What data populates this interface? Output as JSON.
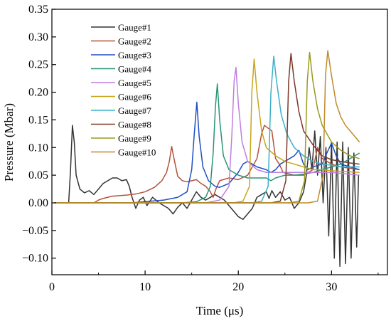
{
  "chart_data": {
    "type": "line",
    "xlabel": "Time (μs)",
    "ylabel": "Pressure (Mbar)",
    "xlim": [
      0,
      36
    ],
    "ylim": [
      -0.13,
      0.35
    ],
    "xticks": [
      0,
      10,
      20,
      30
    ],
    "yticks": [
      -0.1,
      -0.05,
      0.0,
      0.05,
      0.1,
      0.15,
      0.2,
      0.25,
      0.3,
      0.35
    ],
    "ytick_labels": [
      "−0.10",
      "−0.05",
      "0.00",
      "0.05",
      "0.10",
      "0.15",
      "0.20",
      "0.25",
      "0.30",
      "0.35"
    ],
    "legend_position": "top-left",
    "series": [
      {
        "name": "Gauge#1",
        "color": "#333333",
        "points": [
          [
            0.3,
            0
          ],
          [
            1.8,
            0
          ],
          [
            2.0,
            0.06
          ],
          [
            2.2,
            0.14
          ],
          [
            2.4,
            0.11
          ],
          [
            2.6,
            0.05
          ],
          [
            3.0,
            0.025
          ],
          [
            3.5,
            0.018
          ],
          [
            4.0,
            0.022
          ],
          [
            4.5,
            0.015
          ],
          [
            5.0,
            0.025
          ],
          [
            5.5,
            0.035
          ],
          [
            6.0,
            0.04
          ],
          [
            6.5,
            0.045
          ],
          [
            7.0,
            0.045
          ],
          [
            7.5,
            0.04
          ],
          [
            8.0,
            0.042
          ],
          [
            8.3,
            0.03
          ],
          [
            8.6,
            0.01
          ],
          [
            9.0,
            -0.01
          ],
          [
            9.4,
            0.005
          ],
          [
            9.8,
            0.01
          ],
          [
            10.2,
            -0.005
          ],
          [
            10.8,
            0.01
          ],
          [
            11.5,
            0
          ],
          [
            12.0,
            -0.005
          ],
          [
            12.5,
            -0.01
          ],
          [
            13.0,
            -0.02
          ],
          [
            13.5,
            -0.008
          ],
          [
            14.0,
            0
          ],
          [
            14.5,
            -0.01
          ],
          [
            15.0,
            0.005
          ],
          [
            15.5,
            0.02
          ],
          [
            16.0,
            0.01
          ],
          [
            16.5,
            0.005
          ],
          [
            17.0,
            0.01
          ],
          [
            17.5,
            0.015
          ],
          [
            18.0,
            0.01
          ],
          [
            18.5,
            0.005
          ],
          [
            19.0,
            -0.005
          ],
          [
            19.5,
            -0.015
          ],
          [
            20.0,
            -0.025
          ],
          [
            20.5,
            -0.03
          ],
          [
            21.0,
            -0.02
          ],
          [
            21.5,
            -0.01
          ],
          [
            22.0,
            0.01
          ],
          [
            22.5,
            0.015
          ],
          [
            23.0,
            0.02
          ],
          [
            23.3,
            0.008
          ],
          [
            23.6,
            0.022
          ],
          [
            24.0,
            0.01
          ],
          [
            24.5,
            0.02
          ],
          [
            25.0,
            0.005
          ],
          [
            25.5,
            0.01
          ],
          [
            26.0,
            -0.01
          ],
          [
            26.5,
            0
          ],
          [
            27.0,
            0.02
          ],
          [
            27.3,
            0.05
          ],
          [
            27.6,
            0.1
          ],
          [
            27.9,
            0.06
          ],
          [
            28.2,
            0.13
          ],
          [
            28.5,
            0.05
          ],
          [
            28.8,
            0.12
          ],
          [
            29.1,
            0
          ],
          [
            29.4,
            0.1
          ],
          [
            29.7,
            -0.06
          ],
          [
            30.0,
            0.11
          ],
          [
            30.3,
            -0.1
          ],
          [
            30.6,
            0.11
          ],
          [
            30.9,
            -0.115
          ],
          [
            31.2,
            0.11
          ],
          [
            31.5,
            -0.11
          ],
          [
            31.8,
            0.1
          ],
          [
            32.1,
            -0.1
          ],
          [
            32.4,
            0.09
          ],
          [
            32.7,
            -0.08
          ],
          [
            32.9,
            0.05
          ]
        ]
      },
      {
        "name": "Gauge#2",
        "color": "#b5523b",
        "points": [
          [
            0.3,
            0
          ],
          [
            4.5,
            0
          ],
          [
            5.0,
            0.005
          ],
          [
            5.5,
            0.008
          ],
          [
            6.5,
            0.012
          ],
          [
            8.0,
            0.014
          ],
          [
            9.0,
            0.016
          ],
          [
            10.0,
            0.02
          ],
          [
            11.0,
            0.028
          ],
          [
            11.8,
            0.04
          ],
          [
            12.3,
            0.055
          ],
          [
            12.6,
            0.075
          ],
          [
            12.85,
            0.102
          ],
          [
            13.1,
            0.08
          ],
          [
            13.5,
            0.048
          ],
          [
            14.0,
            0.04
          ],
          [
            14.5,
            0.038
          ],
          [
            15.0,
            0.04
          ],
          [
            15.5,
            0.042
          ],
          [
            16.0,
            0.035
          ],
          [
            16.5,
            0.03
          ],
          [
            17.0,
            0.02
          ],
          [
            17.3,
            0.01
          ],
          [
            17.6,
            0.025
          ],
          [
            18.0,
            0.04
          ],
          [
            19.0,
            0.045
          ],
          [
            20.0,
            0.042
          ],
          [
            21.0,
            0.05
          ],
          [
            22.0,
            0.08
          ],
          [
            22.5,
            0.125
          ],
          [
            22.8,
            0.14
          ],
          [
            23.2,
            0.135
          ],
          [
            23.6,
            0.13
          ],
          [
            24.0,
            0.08
          ],
          [
            24.4,
            0.07
          ],
          [
            24.8,
            0.055
          ],
          [
            26.0,
            0.05
          ],
          [
            27.0,
            0.05
          ],
          [
            28.0,
            0.06
          ],
          [
            28.5,
            0.1
          ],
          [
            29.0,
            0.08
          ],
          [
            30.0,
            0.07
          ],
          [
            31.0,
            0.065
          ],
          [
            33.0,
            0.06
          ]
        ]
      },
      {
        "name": "Gauge#3",
        "color": "#1f4fc4",
        "points": [
          [
            0.3,
            0
          ],
          [
            8.5,
            0
          ],
          [
            10.0,
            0.002
          ],
          [
            12.0,
            0.005
          ],
          [
            13.5,
            0.01
          ],
          [
            14.5,
            0.02
          ],
          [
            15.0,
            0.06
          ],
          [
            15.3,
            0.13
          ],
          [
            15.55,
            0.182
          ],
          [
            15.8,
            0.12
          ],
          [
            16.2,
            0.065
          ],
          [
            16.8,
            0.04
          ],
          [
            17.5,
            0.03
          ],
          [
            18.0,
            0.028
          ],
          [
            19.0,
            0.035
          ],
          [
            19.5,
            0.045
          ],
          [
            20.0,
            0.055
          ],
          [
            20.5,
            0.07
          ],
          [
            21.0,
            0.075
          ],
          [
            22.0,
            0.065
          ],
          [
            23.0,
            0.06
          ],
          [
            23.5,
            0.055
          ],
          [
            24.0,
            0.06
          ],
          [
            24.5,
            0.07
          ],
          [
            25.0,
            0.075
          ],
          [
            26.0,
            0.085
          ],
          [
            26.5,
            0.095
          ],
          [
            27.0,
            0.07
          ],
          [
            27.5,
            0.06
          ],
          [
            28.0,
            0.065
          ],
          [
            29.0,
            0.07
          ],
          [
            29.5,
            0.09
          ],
          [
            30.0,
            0.108
          ],
          [
            30.5,
            0.085
          ],
          [
            31.0,
            0.07
          ],
          [
            32.0,
            0.065
          ],
          [
            33.0,
            0.06
          ]
        ]
      },
      {
        "name": "Gauge#4",
        "color": "#2a9477",
        "points": [
          [
            0.3,
            0
          ],
          [
            14.0,
            0
          ],
          [
            15.5,
            0.002
          ],
          [
            16.5,
            0.01
          ],
          [
            17.0,
            0.03
          ],
          [
            17.3,
            0.09
          ],
          [
            17.55,
            0.175
          ],
          [
            17.75,
            0.215
          ],
          [
            18.0,
            0.15
          ],
          [
            18.4,
            0.085
          ],
          [
            19.0,
            0.06
          ],
          [
            20.0,
            0.05
          ],
          [
            21.0,
            0.045
          ],
          [
            22.0,
            0.045
          ],
          [
            23.0,
            0.045
          ],
          [
            23.5,
            0.04
          ],
          [
            24.0,
            0.045
          ],
          [
            25.0,
            0.05
          ],
          [
            26.0,
            0.05
          ],
          [
            27.0,
            0.052
          ],
          [
            28.0,
            0.055
          ],
          [
            29.0,
            0.06
          ],
          [
            30.0,
            0.065
          ],
          [
            31.0,
            0.07
          ],
          [
            32.0,
            0.08
          ],
          [
            33.0,
            0.09
          ]
        ]
      },
      {
        "name": "Gauge#5",
        "color": "#c07ee0",
        "points": [
          [
            0.3,
            0
          ],
          [
            16.5,
            0
          ],
          [
            18.0,
            0.005
          ],
          [
            19.0,
            0.03
          ],
          [
            19.3,
            0.12
          ],
          [
            19.55,
            0.22
          ],
          [
            19.75,
            0.245
          ],
          [
            20.0,
            0.18
          ],
          [
            20.4,
            0.11
          ],
          [
            21.0,
            0.075
          ],
          [
            22.0,
            0.06
          ],
          [
            23.0,
            0.055
          ],
          [
            24.0,
            0.055
          ],
          [
            25.0,
            0.055
          ],
          [
            26.0,
            0.055
          ],
          [
            28.0,
            0.055
          ],
          [
            30.0,
            0.055
          ],
          [
            33.0,
            0.05
          ]
        ]
      },
      {
        "name": "Gauge#6",
        "color": "#c8a51a",
        "points": [
          [
            0.3,
            0
          ],
          [
            19.5,
            0
          ],
          [
            20.5,
            0.003
          ],
          [
            21.2,
            0.03
          ],
          [
            21.45,
            0.2
          ],
          [
            21.7,
            0.26
          ],
          [
            22.0,
            0.2
          ],
          [
            22.5,
            0.13
          ],
          [
            23.0,
            0.1
          ],
          [
            24.0,
            0.085
          ],
          [
            25.0,
            0.075
          ],
          [
            26.0,
            0.07
          ],
          [
            27.0,
            0.065
          ],
          [
            28.0,
            0.06
          ],
          [
            29.0,
            0.06
          ],
          [
            30.0,
            0.058
          ],
          [
            33.0,
            0.055
          ]
        ]
      },
      {
        "name": "Gauge#7",
        "color": "#3db0c8",
        "points": [
          [
            0.3,
            0
          ],
          [
            21.5,
            0
          ],
          [
            22.5,
            0.003
          ],
          [
            23.2,
            0.03
          ],
          [
            23.5,
            0.2
          ],
          [
            23.8,
            0.265
          ],
          [
            24.1,
            0.22
          ],
          [
            24.6,
            0.16
          ],
          [
            25.2,
            0.125
          ],
          [
            26.0,
            0.1
          ],
          [
            27.0,
            0.085
          ],
          [
            28.0,
            0.075
          ],
          [
            29.0,
            0.07
          ],
          [
            30.0,
            0.068
          ],
          [
            31.0,
            0.065
          ],
          [
            33.0,
            0.065
          ]
        ]
      },
      {
        "name": "Gauge#8",
        "color": "#7a3728",
        "points": [
          [
            0.3,
            0
          ],
          [
            23.5,
            0
          ],
          [
            24.5,
            0.003
          ],
          [
            25.1,
            0.04
          ],
          [
            25.4,
            0.22
          ],
          [
            25.65,
            0.27
          ],
          [
            26.0,
            0.22
          ],
          [
            26.5,
            0.165
          ],
          [
            27.0,
            0.13
          ],
          [
            28.0,
            0.105
          ],
          [
            28.5,
            0.095
          ],
          [
            29.0,
            0.085
          ],
          [
            30.0,
            0.078
          ],
          [
            31.0,
            0.075
          ],
          [
            32.0,
            0.072
          ],
          [
            33.0,
            0.07
          ]
        ]
      },
      {
        "name": "Gauge#9",
        "color": "#9a9a1e",
        "points": [
          [
            0.3,
            0
          ],
          [
            25.5,
            0
          ],
          [
            26.5,
            0.003
          ],
          [
            27.1,
            0.04
          ],
          [
            27.4,
            0.22
          ],
          [
            27.65,
            0.272
          ],
          [
            28.0,
            0.22
          ],
          [
            28.5,
            0.17
          ],
          [
            29.0,
            0.14
          ],
          [
            30.0,
            0.11
          ],
          [
            31.0,
            0.095
          ],
          [
            32.0,
            0.085
          ],
          [
            33.0,
            0.08
          ]
        ]
      },
      {
        "name": "Gauge#10",
        "color": "#c08a2a",
        "points": [
          [
            0.3,
            0
          ],
          [
            27.5,
            0
          ],
          [
            28.5,
            0.003
          ],
          [
            29.1,
            0.05
          ],
          [
            29.35,
            0.23
          ],
          [
            29.6,
            0.275
          ],
          [
            30.0,
            0.23
          ],
          [
            30.5,
            0.18
          ],
          [
            31.0,
            0.155
          ],
          [
            31.5,
            0.14
          ],
          [
            32.0,
            0.13
          ],
          [
            32.5,
            0.12
          ],
          [
            33.0,
            0.11
          ]
        ]
      }
    ]
  }
}
